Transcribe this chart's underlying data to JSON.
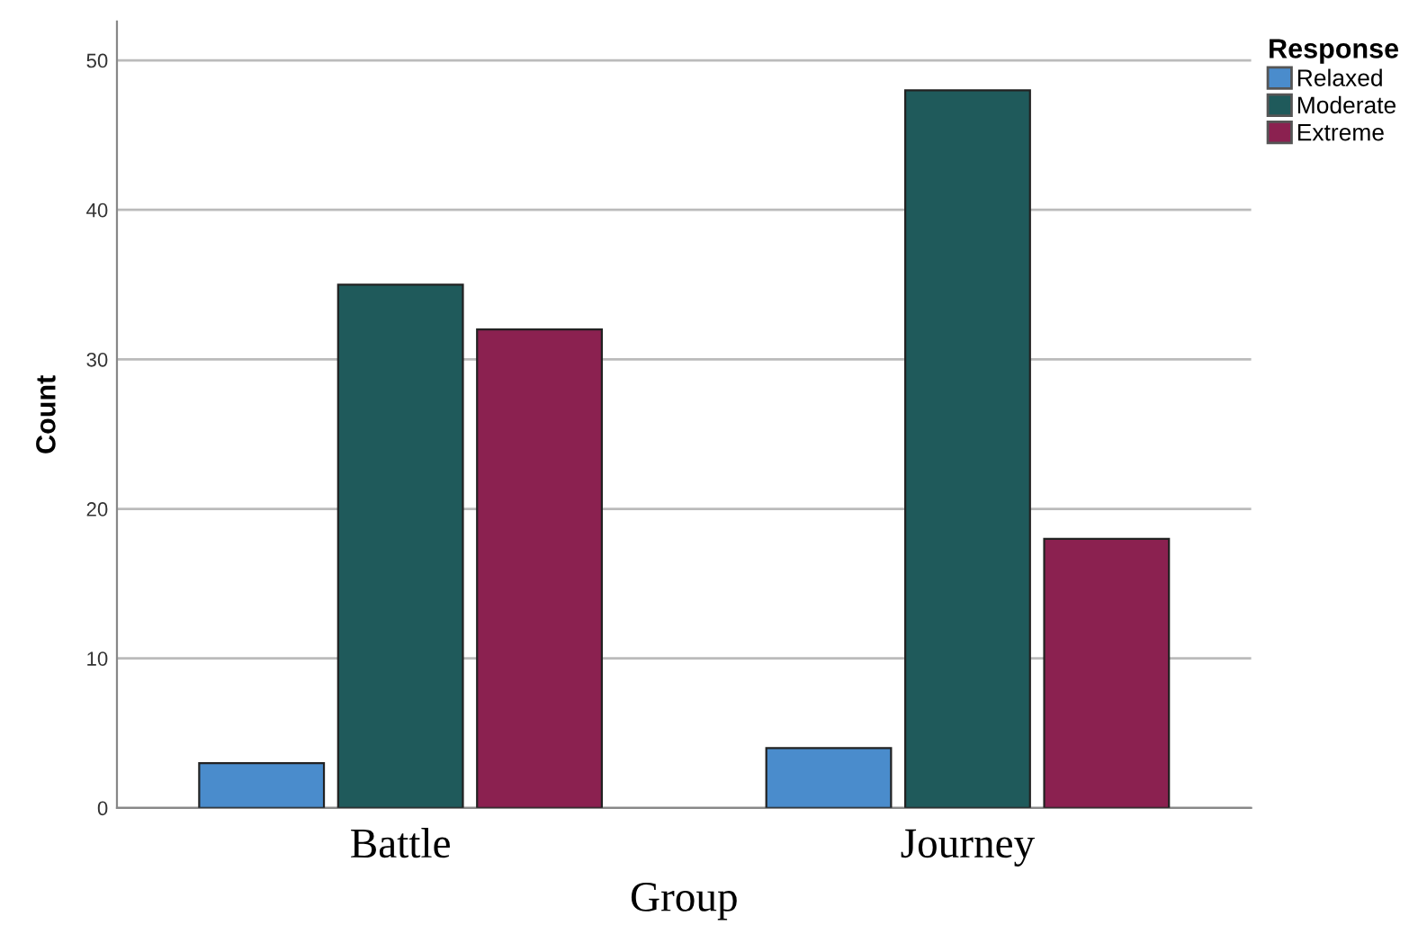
{
  "chart_data": {
    "type": "bar",
    "xlabel": "Group",
    "ylabel": "Count",
    "legend_title": "Response",
    "categories": [
      "Battle",
      "Journey"
    ],
    "series": [
      {
        "name": "Relaxed",
        "color": "#4a8ccc",
        "values": [
          3,
          4
        ]
      },
      {
        "name": "Moderate",
        "color": "#1f5a5b",
        "values": [
          35,
          48
        ]
      },
      {
        "name": "Extreme",
        "color": "#8b2150",
        "values": [
          32,
          18
        ]
      }
    ],
    "ylim": [
      0,
      52.6
    ],
    "yticks": [
      0,
      10,
      20,
      30,
      40,
      50
    ],
    "grid": "y",
    "legend": "top right"
  }
}
